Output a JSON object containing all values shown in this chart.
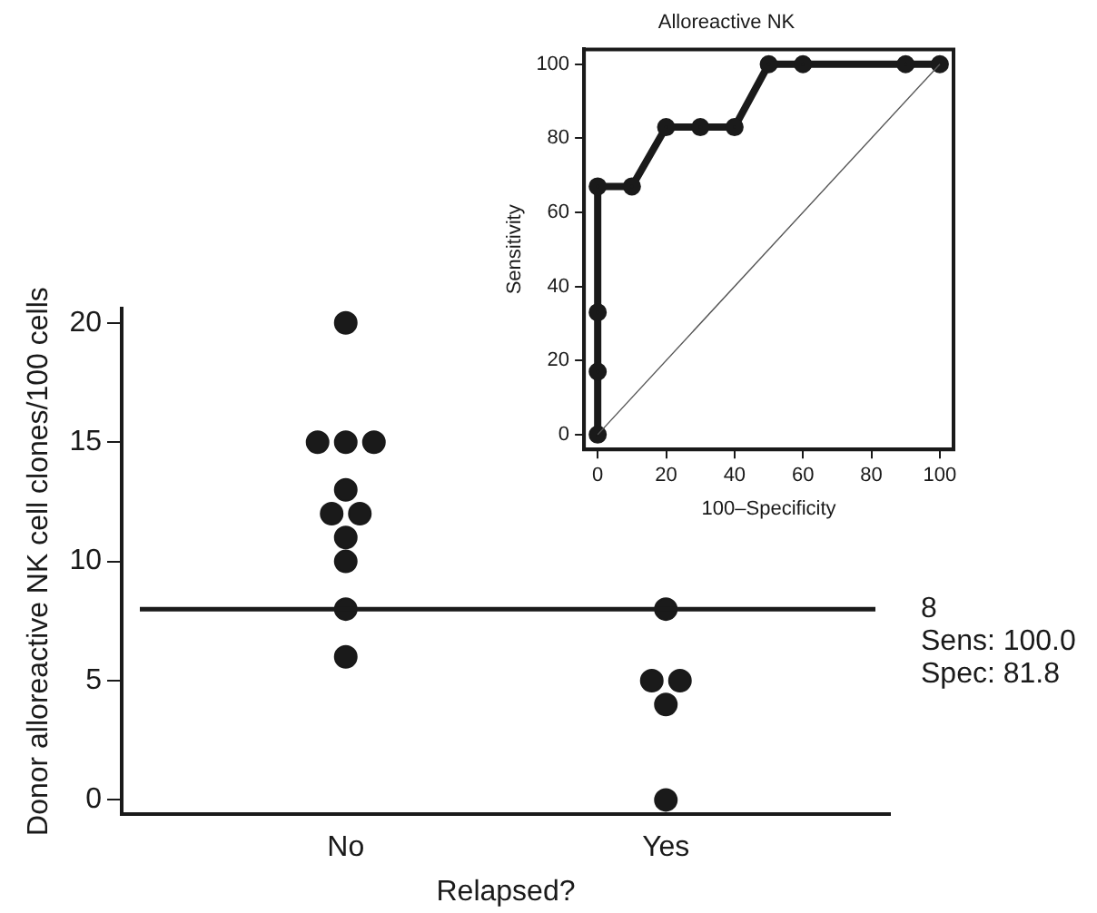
{
  "chart_data": [
    {
      "type": "scatter",
      "xlabel": "Relapsed?",
      "ylabel": "Donor alloreactive NK cell clones/100 cells",
      "categories": [
        "No",
        "Yes"
      ],
      "series": [
        {
          "color": "#1a1a1a",
          "x": [
            "No",
            "No",
            "No",
            "No",
            "No",
            "No",
            "No",
            "No",
            "No",
            "No",
            "No",
            "Yes",
            "Yes",
            "Yes",
            "Yes",
            "Yes"
          ],
          "values": [
            20,
            15,
            15,
            15,
            13,
            12,
            12,
            11,
            10,
            8,
            6,
            8,
            5,
            5,
            4,
            0
          ]
        }
      ],
      "ylim": [
        -0.6,
        20.6
      ],
      "yticks": [
        0,
        5,
        10,
        15,
        20
      ],
      "grid": false,
      "legend": false,
      "marker": "circle",
      "ref_lines": [
        {
          "axis": "y",
          "value": 8,
          "label": "8",
          "color": "#1a1a1a"
        }
      ],
      "annotations": [
        "Sens: 100.0",
        "Spec: 81.8"
      ]
    },
    {
      "type": "line",
      "title": "Alloreactive NK",
      "xlabel": "100–Specificity",
      "ylabel": "Sensitivity",
      "series": [
        {
          "color": "#1a1a1a",
          "x": [
            0,
            0,
            0,
            0,
            10,
            20,
            30,
            40,
            50,
            60,
            90,
            100
          ],
          "values": [
            0,
            17,
            33,
            67,
            67,
            83,
            83,
            83,
            100,
            100,
            100,
            100
          ]
        },
        {
          "color": "#555555",
          "type": "line",
          "marker": "none",
          "x": [
            0,
            100
          ],
          "values": [
            0,
            100
          ]
        }
      ],
      "xlim": [
        -4,
        104
      ],
      "xticks": [
        0,
        20,
        40,
        60,
        80,
        100
      ],
      "ylim": [
        -4,
        104
      ],
      "yticks": [
        0,
        20,
        40,
        60,
        80,
        100
      ],
      "grid": false,
      "legend": false,
      "marker": "circle"
    }
  ]
}
